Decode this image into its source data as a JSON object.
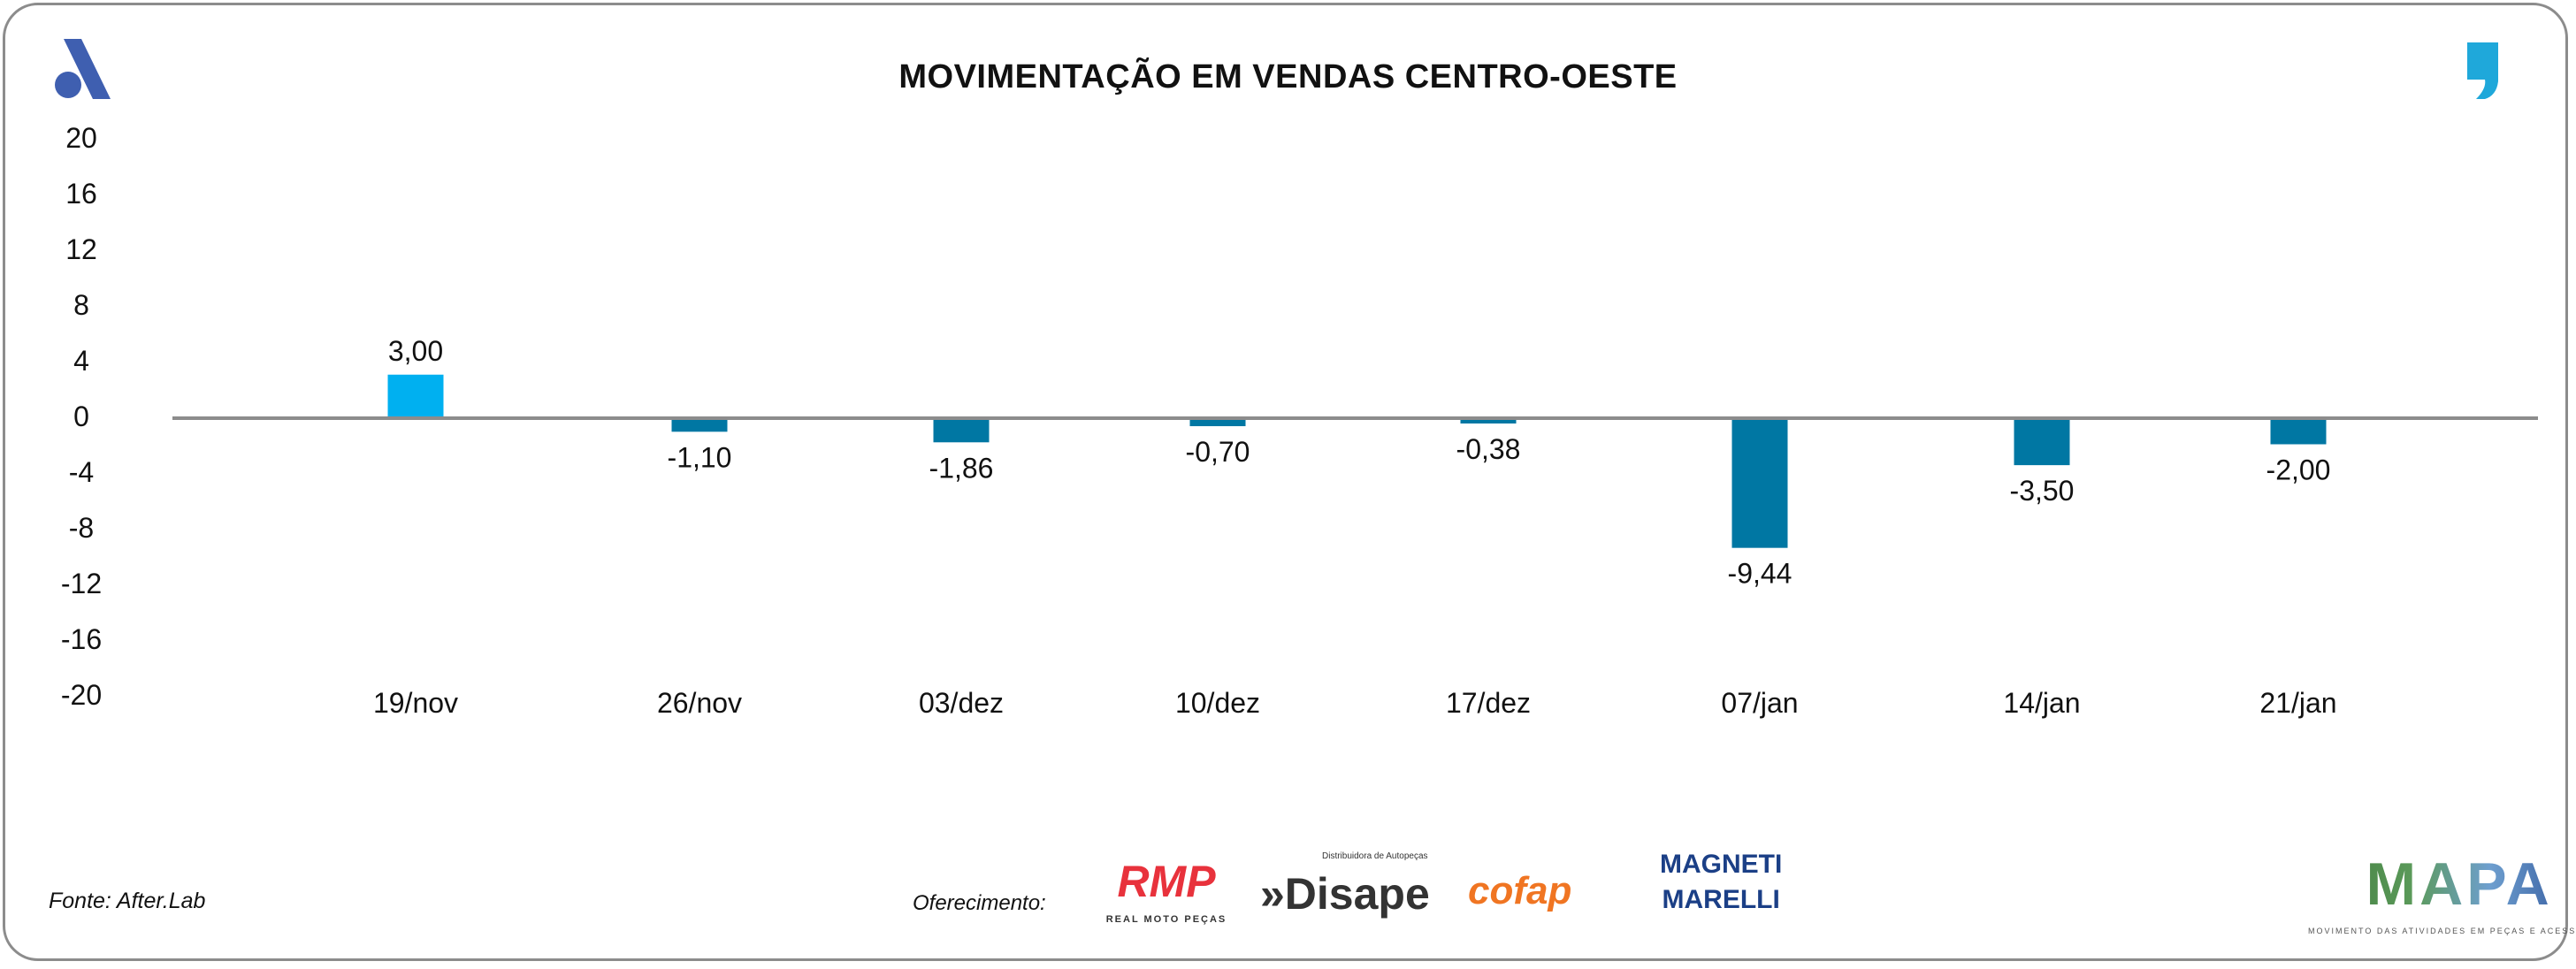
{
  "title": "MOVIMENTAÇÃO EM VENDAS CENTRO-OESTE",
  "source": "Fonte: After.Lab",
  "sponsors_label": "Oferecimento:",
  "sponsors": {
    "rmp": {
      "name": "RMP",
      "tagline": "REAL MOTO PEÇAS"
    },
    "disape": {
      "name": "»Disape",
      "tagline": "Distribuidora de Autopeças"
    },
    "cofap": {
      "name": "cofap"
    },
    "magneti": {
      "line1": "MAGNETI",
      "line2": "MARELLI"
    }
  },
  "brand": {
    "name": "MAPA",
    "tagline": "MOVIMENTO DAS ATIVIDADES EM PEÇAS E ACESSÓRIOS"
  },
  "colors": {
    "highlight": "#00b0f0",
    "bar": "#0077a3",
    "axis": "#8c8c8c",
    "logo_left": "#3f5fb0",
    "logo_right": "#1fa8da"
  },
  "chart_data": {
    "type": "bar",
    "title": "MOVIMENTAÇÃO EM VENDAS CENTRO-OESTE",
    "categories": [
      "19/nov",
      "26/nov",
      "03/dez",
      "10/dez",
      "17/dez",
      "07/jan",
      "14/jan",
      "21/jan"
    ],
    "values": [
      3.0,
      -1.1,
      -1.86,
      -0.7,
      -0.38,
      -9.44,
      -3.5,
      -2.0
    ],
    "data_labels": [
      "3,00",
      "-1,10",
      "-1,86",
      "-0,70",
      "-0,38",
      "-9,44",
      "-3,50",
      "-2,00"
    ],
    "ylim": [
      -20,
      20
    ],
    "yticks": [
      20,
      16,
      12,
      8,
      4,
      0,
      -4,
      -8,
      -12,
      -16,
      -20
    ],
    "highlight_index": 0,
    "grid": false,
    "legend": "none"
  }
}
